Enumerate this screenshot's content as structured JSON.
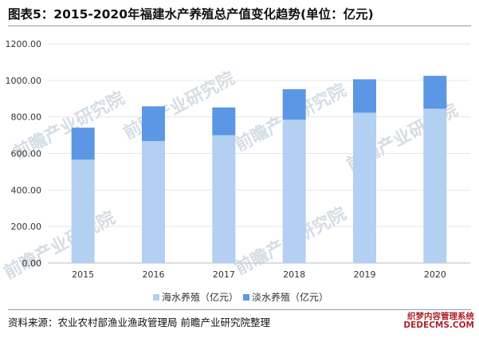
{
  "header": {
    "title": "图表5：2015-2020年福建水产养殖总产值变化趋势(单位：亿元)"
  },
  "footer": {
    "source": "资料来源：农业农村部渔业渔政管理局 前瞻产业研究院整理"
  },
  "watermark": {
    "text": "前瞻产业研究院",
    "corner_line1": "织梦内容管理系统",
    "corner_line2": "DEDECMS.COM"
  },
  "colors": {
    "marine": "#b3cff1",
    "freshwater": "#5b97e5",
    "grid": "#e6e6e6",
    "axis": "#bfbfbf"
  },
  "chart_data": {
    "type": "bar",
    "stacked": true,
    "categories": [
      "2015",
      "2016",
      "2017",
      "2018",
      "2019",
      "2020"
    ],
    "series": [
      {
        "name": "海水养殖（亿元）",
        "values": [
          566,
          668,
          700,
          785,
          823,
          845
        ]
      },
      {
        "name": "淡水养殖（亿元）",
        "values": [
          175,
          190,
          152,
          167,
          183,
          180
        ]
      }
    ],
    "ylim": [
      0,
      1200
    ],
    "yticks": [
      "0.00",
      "200.00",
      "400.00",
      "600.00",
      "800.00",
      "1000.00",
      "1200.00"
    ],
    "grid": true,
    "legend_position": "bottom"
  }
}
